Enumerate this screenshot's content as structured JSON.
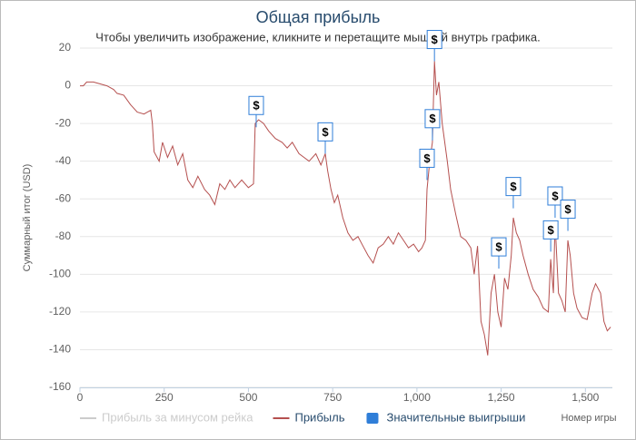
{
  "chart_data": {
    "type": "line",
    "title": "Общая прибыль",
    "subtitle": "Чтобы увеличить изображение, кликните и перетащите мышкой внутрь графика.",
    "x_label": "Номер игры",
    "y_label": "Суммарный итог (USD)",
    "xlim": [
      0,
      1580
    ],
    "xticks": [
      0,
      250,
      500,
      750,
      {
        "value": 1000,
        "label": "1,000"
      },
      {
        "value": 1250,
        "label": "1,250"
      },
      {
        "value": 1500,
        "label": "1,500"
      }
    ],
    "ylim": [
      -160,
      20
    ],
    "yticks": [
      20,
      0,
      -20,
      -40,
      -60,
      -80,
      -100,
      -120,
      -140,
      -160
    ],
    "grid": true,
    "series": [
      {
        "name": "Прибыль за минусом рейка",
        "color": "#cccccc",
        "visible": false
      },
      {
        "name": "Прибыль",
        "color": "#b5504f",
        "x": [
          0,
          10,
          20,
          40,
          60,
          80,
          100,
          110,
          130,
          150,
          170,
          190,
          200,
          210,
          215,
          220,
          235,
          245,
          260,
          275,
          290,
          305,
          320,
          335,
          350,
          370,
          385,
          400,
          415,
          430,
          445,
          460,
          480,
          500,
          515,
          520,
          530,
          545,
          560,
          580,
          600,
          615,
          630,
          650,
          665,
          680,
          700,
          715,
          728,
          735,
          745,
          755,
          765,
          780,
          795,
          810,
          825,
          840,
          855,
          870,
          885,
          900,
          915,
          930,
          945,
          960,
          975,
          990,
          1005,
          1015,
          1025,
          1030,
          1038,
          1046,
          1052,
          1058,
          1065,
          1075,
          1090,
          1100,
          1115,
          1130,
          1145,
          1160,
          1170,
          1180,
          1190,
          1200,
          1210,
          1220,
          1230,
          1240,
          1250,
          1260,
          1270,
          1280,
          1286,
          1295,
          1305,
          1315,
          1330,
          1345,
          1360,
          1375,
          1390,
          1397,
          1405,
          1410,
          1420,
          1430,
          1440,
          1448,
          1455,
          1465,
          1475,
          1490,
          1505,
          1520,
          1530,
          1545,
          1555,
          1565,
          1575
        ],
        "values": [
          0,
          0,
          2,
          2,
          1,
          0,
          -2,
          -4,
          -5,
          -10,
          -14,
          -15,
          -14,
          -13,
          -20,
          -35,
          -40,
          -30,
          -38,
          -32,
          -42,
          -36,
          -50,
          -54,
          -48,
          -55,
          -58,
          -63,
          -52,
          -55,
          -50,
          -54,
          -50,
          -54,
          -52,
          -20,
          -18,
          -20,
          -24,
          -28,
          -30,
          -33,
          -30,
          -36,
          -38,
          -40,
          -36,
          -42,
          -36,
          -45,
          -55,
          -62,
          -58,
          -70,
          -78,
          -82,
          -80,
          -85,
          -90,
          -94,
          -86,
          -84,
          -80,
          -84,
          -78,
          -82,
          -86,
          -84,
          -88,
          -86,
          -82,
          -55,
          -40,
          -30,
          13,
          -5,
          2,
          -20,
          -40,
          -55,
          -68,
          -80,
          -82,
          -86,
          -100,
          -85,
          -125,
          -132,
          -143,
          -110,
          -100,
          -120,
          -128,
          -102,
          -108,
          -90,
          -70,
          -78,
          -82,
          -90,
          -100,
          -108,
          -112,
          -118,
          -120,
          -92,
          -110,
          -72,
          -110,
          -114,
          -120,
          -82,
          -90,
          -110,
          -118,
          -123,
          -124,
          -110,
          -105,
          -110,
          -125,
          -130,
          -128
        ]
      },
      {
        "name": "Значительные выигрыши",
        "color": "#2f7ed8",
        "text": "$",
        "x": [
          523,
          728,
          1030,
          1046,
          1052,
          1243,
          1286,
          1397,
          1410,
          1448
        ],
        "values": [
          -22,
          -36,
          -50,
          -29,
          13,
          -97,
          -65,
          -88,
          -70,
          -77
        ]
      }
    ]
  }
}
